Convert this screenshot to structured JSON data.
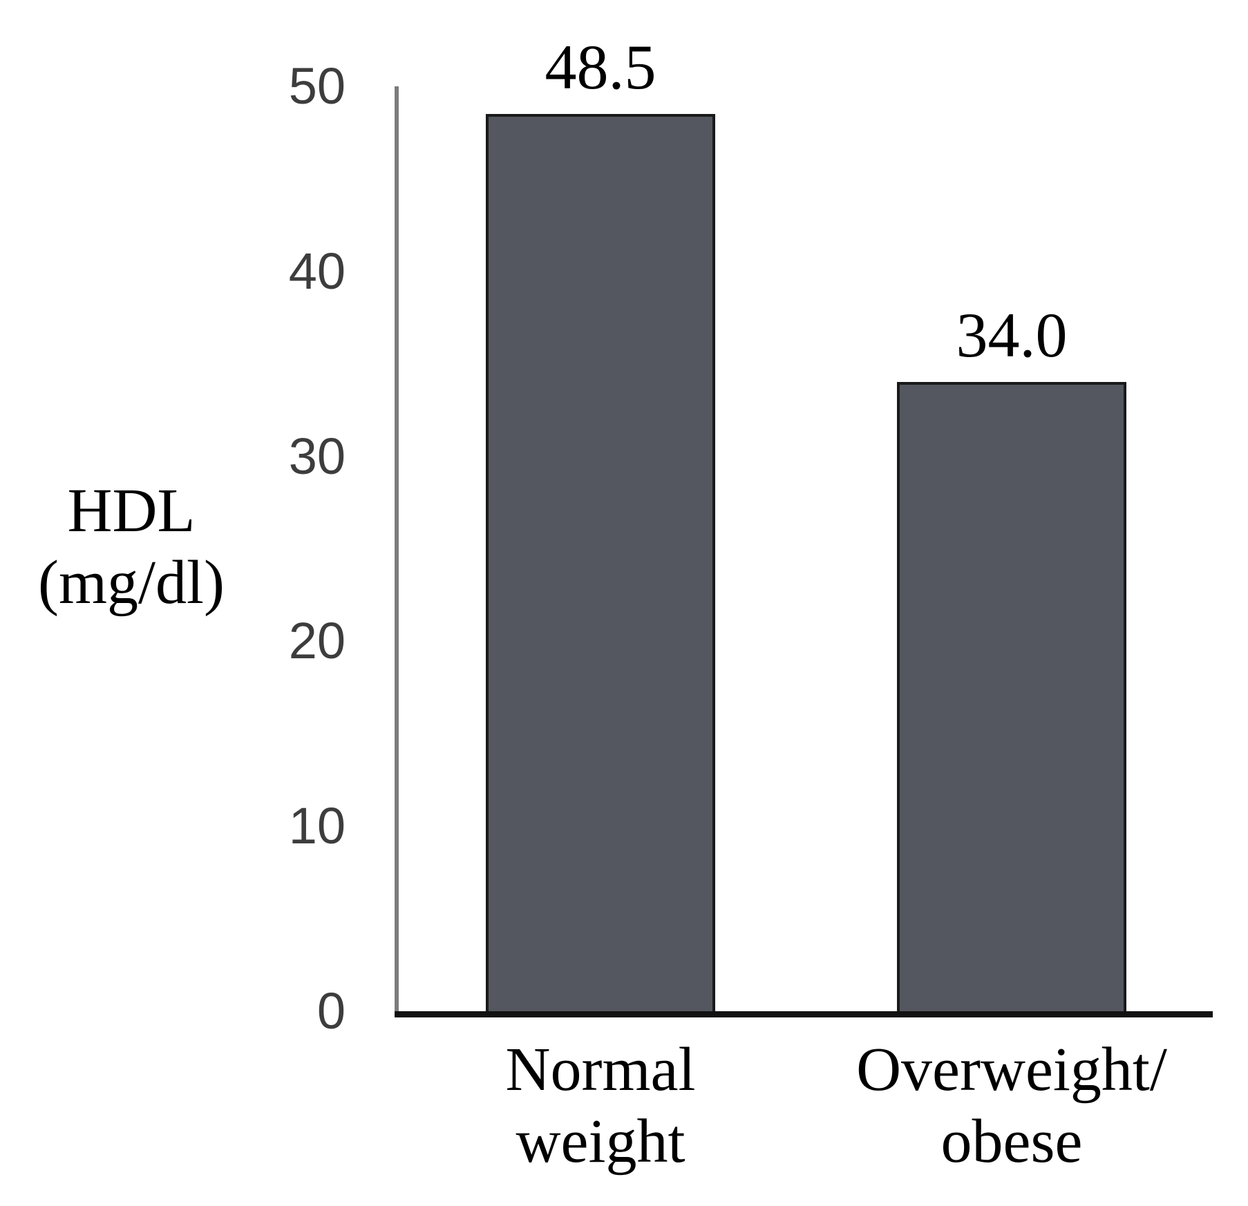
{
  "chart_data": {
    "type": "bar",
    "title": "",
    "xlabel": "",
    "ylabel": "HDL (mg/dl)",
    "ylabel_lines": [
      "HDL",
      "(mg/dl)"
    ],
    "categories": [
      "Normal weight",
      "Overweight/obese"
    ],
    "category_lines": [
      [
        "Normal",
        "weight"
      ],
      [
        "Overweight/",
        "obese"
      ]
    ],
    "values": [
      48.5,
      34.0
    ],
    "value_labels": [
      "48.5",
      "34.0"
    ],
    "ylim": [
      0,
      50
    ],
    "yticks": [
      0,
      10,
      20,
      30,
      40,
      50
    ],
    "grid": false,
    "legend": false,
    "colors": {
      "bar_fill": "#54575F",
      "bar_border": "#1A1A1A",
      "y_axis_line": "#7C7C7C",
      "x_axis_line": "#111111",
      "tick_text": "#3D3D3D",
      "label_text": "#000000",
      "background": "#FFFFFF"
    }
  }
}
